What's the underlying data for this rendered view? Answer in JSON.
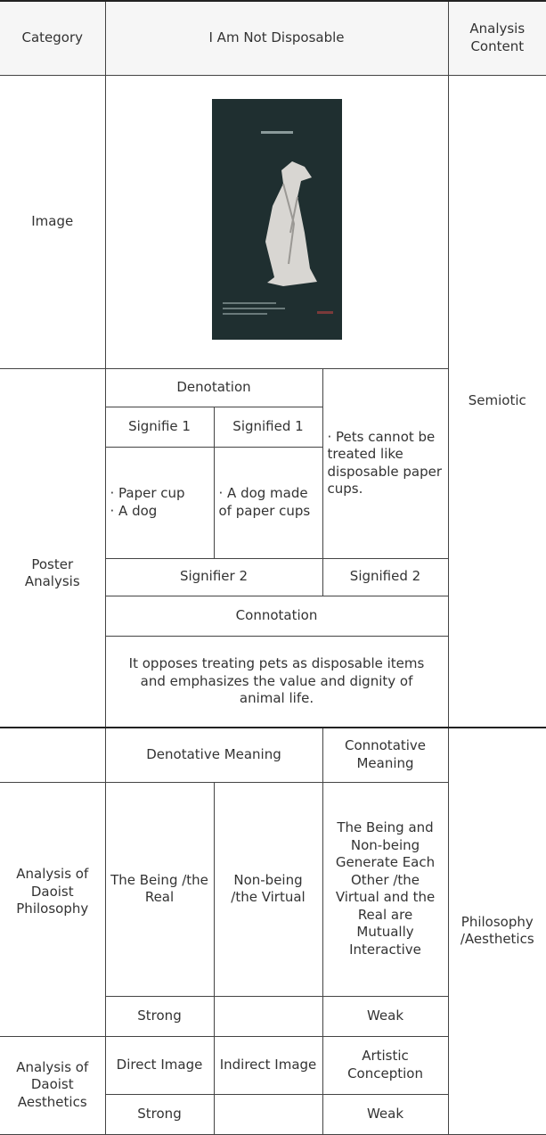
{
  "table": {
    "header": [
      "Category",
      "I Am Not Disposable",
      "Analysis Content"
    ],
    "image_row": {
      "label": "Image"
    },
    "semiotic": "Semiotic",
    "poster": {
      "label": "Poster Analysis",
      "denotation": "Denotation",
      "signifie_1": "Signifie 1",
      "signified_1": "Signified 1",
      "signifie_1_items": [
        "· Paper cup",
        "· A dog"
      ],
      "signified_1_text": "· A dog made of paper cups",
      "pets": "· Pets cannot be treated like disposable paper cups.",
      "signifier_2": "Signifier 2",
      "signified_2": "Signified 2",
      "connotation": "Connotation",
      "connotation_text": "It opposes treating pets as disposable items and emphasizes the value and dignity of animal life."
    },
    "philosophy_aesthetics": "Philosophy /Aesthetics",
    "daoist_header": [
      "Denotative Meaning",
      "Connotative Meaning"
    ],
    "philosophy": {
      "label": "Analysis of Daoist Philosophy",
      "row": [
        "The Being /the Real",
        "Non-being /the Virtual",
        "The Being and Non-being Generate Each Other /the Virtual and the Real are Mutually Interactive"
      ],
      "strength": [
        "Strong",
        "Weak"
      ]
    },
    "aesthetics": {
      "label": "Analysis of Daoist Aesthetics",
      "row": [
        "Direct Image",
        "Indirect Image",
        "Artistic Conception"
      ],
      "strength": [
        "Strong",
        "Weak"
      ]
    }
  }
}
